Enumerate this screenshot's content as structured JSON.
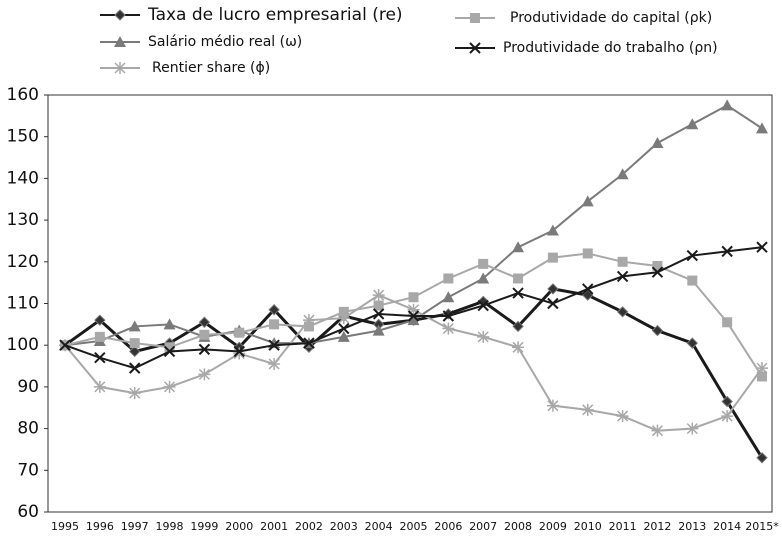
{
  "chart_data": {
    "type": "line",
    "categories": [
      "1995",
      "1996",
      "1997",
      "1998",
      "1999",
      "2000",
      "2001",
      "2002",
      "2003",
      "2004",
      "2005",
      "2006",
      "2007",
      "2008",
      "2009",
      "2010",
      "2011",
      "2012",
      "2013",
      "2014",
      "2015*"
    ],
    "ylim": [
      60,
      160
    ],
    "yticks": [
      60,
      70,
      80,
      90,
      100,
      110,
      120,
      130,
      140,
      150,
      160
    ],
    "series": [
      {
        "name": "Taxa de lucro empresarial (re)",
        "color": "#1a1a1a",
        "marker": "diamond",
        "values": [
          100,
          106,
          98.5,
          100.5,
          105.5,
          99.5,
          108.5,
          99.5,
          107,
          105,
          106,
          107.5,
          110.5,
          104.5,
          113.5,
          112,
          108,
          103.5,
          100.5,
          86.5,
          73
        ]
      },
      {
        "name": "Salário médio real (ω)",
        "color": "#7a7a7a",
        "marker": "triangle",
        "values": [
          100,
          101,
          104.5,
          105,
          102,
          103.5,
          100.5,
          100.5,
          102,
          103.5,
          106,
          111.5,
          116,
          123.5,
          127.5,
          134.5,
          141,
          148.5,
          153,
          157.5,
          152
        ]
      },
      {
        "name": "Rentier share (ϕ)",
        "color": "#a8a8a8",
        "marker": "asterisk",
        "values": [
          100,
          90,
          88.5,
          90,
          93,
          98,
          95.5,
          106,
          106.5,
          112,
          108.5,
          104,
          102,
          99.5,
          85.5,
          84.5,
          83,
          79.5,
          80,
          83,
          94.5
        ]
      },
      {
        "name": "Produtividade do capital (ρk)",
        "color": "#a8a8a8",
        "marker": "square",
        "values": [
          100,
          102,
          100.5,
          99.5,
          102.5,
          103,
          105,
          104.5,
          108,
          109.5,
          111.5,
          116,
          119.5,
          116,
          121,
          122,
          120,
          119,
          115.5,
          105.5,
          92.5
        ]
      },
      {
        "name": "Produtividade do trabalho (ρn)",
        "color": "#1a1a1a",
        "marker": "x",
        "values": [
          100,
          97,
          94.5,
          98.5,
          99,
          98.5,
          100,
          100.5,
          104,
          107.5,
          107,
          107,
          109.5,
          112.5,
          110,
          113.5,
          116.5,
          117.5,
          121.5,
          122.5,
          123.5
        ]
      }
    ]
  }
}
